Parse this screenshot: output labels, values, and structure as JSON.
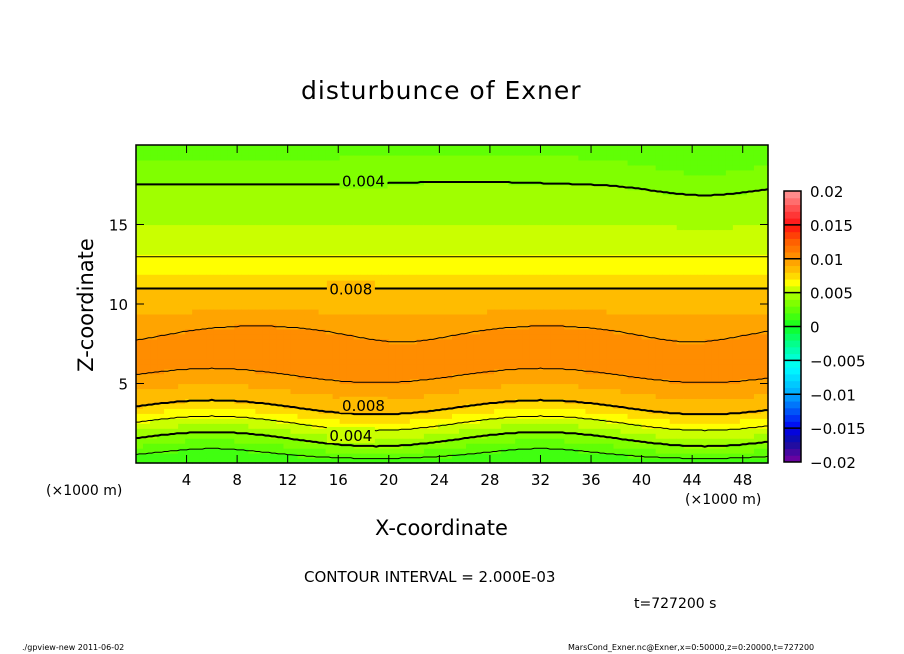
{
  "chart_data": {
    "type": "heatmap",
    "subtype": "filled-contour",
    "title": "disturbunce of Exner",
    "xlabel": "X-coordinate",
    "ylabel": "Z-coordinate",
    "x_unit_left": "(×1000 m)",
    "x_unit_right": "(×1000 m)",
    "xlim": [
      0,
      50
    ],
    "ylim": [
      0,
      20
    ],
    "xticks": [
      4,
      8,
      12,
      16,
      20,
      24,
      28,
      32,
      36,
      40,
      44,
      48
    ],
    "yticks": [
      5,
      10,
      15
    ],
    "contour_interval": 0.002,
    "contour_levels": [
      0.002,
      0.004,
      0.006,
      0.008,
      0.01
    ],
    "contour_labels": [
      "0.004",
      "0.008",
      "0.008",
      "0.004"
    ],
    "approx_vertical_profile": {
      "z": [
        0,
        0.5,
        1.5,
        2.5,
        3.5,
        4.5,
        6,
        8,
        9.5,
        11,
        13,
        15,
        17.5,
        20
      ],
      "value": [
        0.001,
        0.002,
        0.004,
        0.006,
        0.008,
        0.009,
        0.0105,
        0.0102,
        0.009,
        0.008,
        0.006,
        0.005,
        0.004,
        0.0025
      ]
    },
    "colorbar": {
      "min": -0.02,
      "max": 0.02,
      "step": 0.001,
      "tick_labels": [
        "0.02",
        "0.015",
        "0.01",
        "0.005",
        "0",
        "-0.005",
        "-0.01",
        "-0.015",
        "-0.02"
      ],
      "anchors": [
        {
          "v": -0.02,
          "c": "#7a00a0"
        },
        {
          "v": -0.017,
          "c": "#1010a0"
        },
        {
          "v": -0.015,
          "c": "#0000f0"
        },
        {
          "v": -0.01,
          "c": "#00a8ff"
        },
        {
          "v": -0.006,
          "c": "#00ffff"
        },
        {
          "v": -0.003,
          "c": "#00ffa0"
        },
        {
          "v": 0,
          "c": "#10ff20"
        },
        {
          "v": 0.003,
          "c": "#70ff00"
        },
        {
          "v": 0.005,
          "c": "#b0ff00"
        },
        {
          "v": 0.0065,
          "c": "#ffff00"
        },
        {
          "v": 0.008,
          "c": "#ffc800"
        },
        {
          "v": 0.01,
          "c": "#ff9800"
        },
        {
          "v": 0.0125,
          "c": "#ff6000"
        },
        {
          "v": 0.015,
          "c": "#ff1010"
        },
        {
          "v": 0.0175,
          "c": "#ff5050"
        },
        {
          "v": 0.02,
          "c": "#ff9a9a"
        }
      ]
    }
  },
  "footer": {
    "contour_interval_text": "CONTOUR INTERVAL = 2.000E-03",
    "time_text": "t=727200 s",
    "program_text": "./gpview-new  2011-06-02",
    "source_text": "MarsCond_Exner.nc@Exner,x=0:50000,z=0:20000,t=727200"
  }
}
